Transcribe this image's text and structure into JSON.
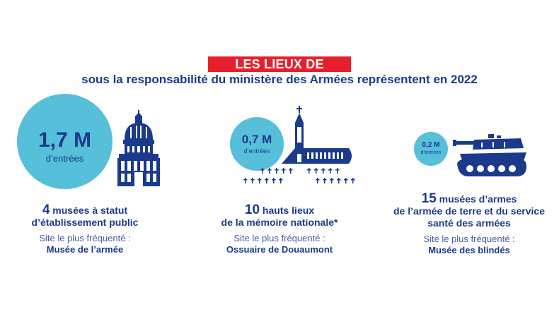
{
  "header": {
    "title": "LES LIEUX DE MÉMOIRE",
    "subtitle": "sous la responsabilité du ministère des Armées représentent en 2022"
  },
  "colors": {
    "accent_red": "#e5202c",
    "navy": "#1b3a8c",
    "bubble_blue": "#56bfd9"
  },
  "blocks": [
    {
      "bubble_value": "1,7 M",
      "bubble_label": "d’entrées",
      "count": "4",
      "line1": " musées à statut",
      "line2": "d’établissement public",
      "site_label": "Site le plus fréquenté :",
      "site_name": "Musée de l’armée",
      "icon": "invalides-dome-icon"
    },
    {
      "bubble_value": "0,7 M",
      "bubble_label": "d’entrées",
      "count": "10",
      "line1": " hauts lieux",
      "line2": "de la mémoire nationale*",
      "site_label": "Site le plus fréquenté :",
      "site_name": "Ossuaire de Douaumont",
      "icon": "ossuary-icon"
    },
    {
      "bubble_value": "0,2 M",
      "bubble_label": "d’entrées",
      "count": "15",
      "line1": " musées d’armes",
      "line2": "de l’armée de terre et du service",
      "line3": "santé des armées",
      "line3_prefix": "de ",
      "site_label": "Site le plus fréquenté :",
      "site_name": "Musée des blindés",
      "icon": "tank-icon"
    }
  ]
}
